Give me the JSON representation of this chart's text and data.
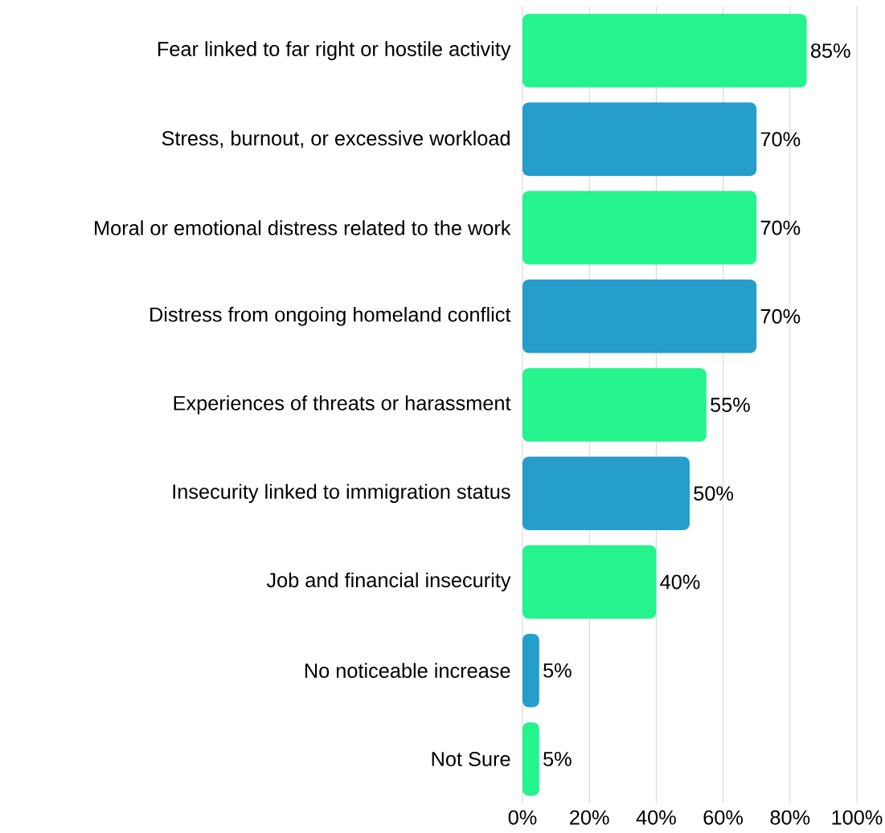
{
  "chart_data": {
    "type": "bar",
    "orientation": "horizontal",
    "categories": [
      "Fear linked to far right or hostile activity",
      "Stress, burnout, or excessive workload",
      "Moral or emotional distress related to the work",
      "Distress from ongoing homeland conflict",
      "Experiences of threats or harassment",
      "Insecurity linked to immigration status",
      "Job and financial insecurity",
      "No noticeable increase",
      "Not Sure"
    ],
    "values": [
      85,
      70,
      70,
      70,
      55,
      50,
      40,
      5,
      5
    ],
    "colors": [
      "#25f38d",
      "#259ecb",
      "#25f38d",
      "#259ecb",
      "#25f38d",
      "#259ecb",
      "#25f38d",
      "#259ecb",
      "#25f38d"
    ],
    "value_labels": [
      "85%",
      "70%",
      "70%",
      "70%",
      "55%",
      "50%",
      "40%",
      "5%",
      "5%"
    ],
    "xlim": [
      0,
      100
    ],
    "xticks": [
      {
        "value": 0,
        "label": "0%"
      },
      {
        "value": 20,
        "label": "20%"
      },
      {
        "value": 40,
        "label": "40%"
      },
      {
        "value": 60,
        "label": "60%"
      },
      {
        "value": 80,
        "label": "80%"
      },
      {
        "value": 100,
        "label": "100%"
      }
    ],
    "grid": "x"
  }
}
